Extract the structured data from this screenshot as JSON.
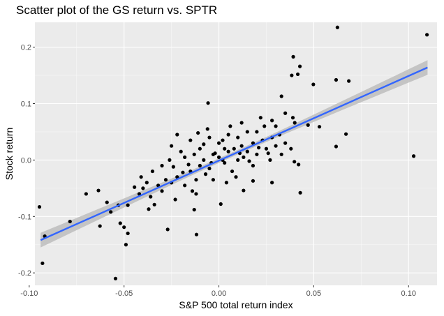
{
  "chart_data": {
    "type": "scatter",
    "title": "Scatter plot of the GS return vs. SPTR",
    "xlabel": "S&P 500 total return index",
    "ylabel": "Stock return",
    "xlim": [
      -0.097,
      0.115
    ],
    "ylim": [
      -0.222,
      0.244
    ],
    "x_ticks": [
      -0.1,
      -0.05,
      0.0,
      0.05,
      0.1
    ],
    "x_tick_labels": [
      "-0.10",
      "-0.05",
      "0.00",
      "0.05",
      "0.10"
    ],
    "y_ticks": [
      -0.2,
      -0.1,
      0.0,
      0.1,
      0.2
    ],
    "y_tick_labels": [
      "-0.2",
      "-0.1",
      "0.0",
      "0.1",
      "0.2"
    ],
    "grid": true,
    "legend": "none",
    "colors": {
      "panel": "#EBEBEB",
      "grid_major": "#FFFFFF",
      "points": "#000000",
      "fit_line": "#3366FF",
      "confidence_band": "#BDBDBD"
    },
    "fit": {
      "method": "lm",
      "x": [
        -0.094,
        0.11
      ],
      "y": [
        -0.142,
        0.164
      ],
      "band_halfwidth": {
        "ends": 0.013,
        "center": 0.004
      }
    },
    "points": [
      {
        "x": 0.0625,
        "y": 0.235
      },
      {
        "x": 0.1097,
        "y": 0.222
      },
      {
        "x": 0.0392,
        "y": 0.183
      },
      {
        "x": 0.0427,
        "y": 0.166
      },
      {
        "x": 0.0384,
        "y": 0.15
      },
      {
        "x": 0.0416,
        "y": 0.152
      },
      {
        "x": 0.0618,
        "y": 0.142
      },
      {
        "x": 0.0685,
        "y": 0.14
      },
      {
        "x": 0.0498,
        "y": 0.134
      },
      {
        "x": 0.033,
        "y": 0.113
      },
      {
        "x": -0.0057,
        "y": 0.101
      },
      {
        "x": 0.035,
        "y": 0.083
      },
      {
        "x": 0.022,
        "y": 0.075
      },
      {
        "x": 0.039,
        "y": 0.075
      },
      {
        "x": 0.028,
        "y": 0.07
      },
      {
        "x": 0.012,
        "y": 0.066
      },
      {
        "x": 0.04,
        "y": 0.066
      },
      {
        "x": 0.047,
        "y": 0.062
      },
      {
        "x": 0.053,
        "y": 0.059
      },
      {
        "x": 0.067,
        "y": 0.046
      },
      {
        "x": 0.0618,
        "y": 0.024
      },
      {
        "x": 0.1027,
        "y": 0.007
      },
      {
        "x": 0.0398,
        "y": -0.003
      },
      {
        "x": 0.042,
        "y": -0.008
      },
      {
        "x": 0.0429,
        "y": -0.058
      },
      {
        "x": 0.028,
        "y": -0.04
      },
      {
        "x": 0.018,
        "y": -0.037
      },
      {
        "x": 0.013,
        "y": -0.054
      },
      {
        "x": 0.001,
        "y": -0.078
      },
      {
        "x": -0.012,
        "y": -0.06
      },
      {
        "x": -0.013,
        "y": -0.088
      },
      {
        "x": -0.023,
        "y": -0.07
      },
      {
        "x": -0.027,
        "y": -0.123
      },
      {
        "x": -0.0118,
        "y": -0.132
      },
      {
        "x": -0.034,
        "y": -0.079
      },
      {
        "x": -0.037,
        "y": -0.087
      },
      {
        "x": -0.048,
        "y": -0.08
      },
      {
        "x": -0.05,
        "y": -0.119
      },
      {
        "x": -0.052,
        "y": -0.112
      },
      {
        "x": -0.048,
        "y": -0.13
      },
      {
        "x": -0.049,
        "y": -0.15
      },
      {
        "x": -0.0627,
        "y": -0.117
      },
      {
        "x": -0.0545,
        "y": -0.21
      },
      {
        "x": -0.093,
        "y": -0.183
      },
      {
        "x": -0.0946,
        "y": -0.083
      },
      {
        "x": -0.0918,
        "y": -0.135
      },
      {
        "x": -0.0785,
        "y": -0.109
      },
      {
        "x": -0.07,
        "y": -0.06
      },
      {
        "x": -0.0635,
        "y": -0.054
      },
      {
        "x": -0.059,
        "y": -0.075
      },
      {
        "x": -0.057,
        "y": -0.092
      },
      {
        "x": -0.053,
        "y": -0.08
      },
      {
        "x": -0.0445,
        "y": -0.048
      },
      {
        "x": -0.041,
        "y": -0.03
      },
      {
        "x": -0.042,
        "y": -0.06
      },
      {
        "x": -0.036,
        "y": -0.065
      },
      {
        "x": -0.03,
        "y": -0.055
      },
      {
        "x": -0.025,
        "y": -0.04
      },
      {
        "x": -0.022,
        "y": -0.03
      },
      {
        "x": -0.018,
        "y": -0.045
      },
      {
        "x": -0.015,
        "y": -0.02
      },
      {
        "x": -0.012,
        "y": -0.035
      },
      {
        "x": -0.01,
        "y": -0.01
      },
      {
        "x": -0.008,
        "y": 0.0
      },
      {
        "x": -0.005,
        "y": -0.015
      },
      {
        "x": -0.003,
        "y": 0.01
      },
      {
        "x": 0.0,
        "y": 0.005
      },
      {
        "x": 0.003,
        "y": -0.005
      },
      {
        "x": 0.005,
        "y": 0.015
      },
      {
        "x": 0.008,
        "y": 0.02
      },
      {
        "x": 0.01,
        "y": 0.0
      },
      {
        "x": 0.012,
        "y": 0.025
      },
      {
        "x": 0.015,
        "y": 0.015
      },
      {
        "x": 0.018,
        "y": 0.03
      },
      {
        "x": 0.02,
        "y": 0.01
      },
      {
        "x": 0.023,
        "y": 0.035
      },
      {
        "x": 0.025,
        "y": 0.02
      },
      {
        "x": 0.028,
        "y": 0.04
      },
      {
        "x": 0.03,
        "y": 0.025
      },
      {
        "x": 0.032,
        "y": 0.045
      },
      {
        "x": 0.035,
        "y": 0.03
      },
      {
        "x": 0.015,
        "y": 0.05
      },
      {
        "x": 0.005,
        "y": 0.045
      },
      {
        "x": -0.005,
        "y": 0.04
      },
      {
        "x": -0.015,
        "y": 0.035
      },
      {
        "x": -0.025,
        "y": 0.025
      },
      {
        "x": -0.02,
        "y": 0.015
      },
      {
        "x": -0.03,
        "y": -0.01
      },
      {
        "x": -0.035,
        "y": -0.02
      },
      {
        "x": -0.01,
        "y": 0.02
      },
      {
        "x": 0.0,
        "y": 0.03
      },
      {
        "x": 0.01,
        "y": 0.04
      },
      {
        "x": 0.02,
        "y": 0.05
      },
      {
        "x": -0.018,
        "y": 0.005
      },
      {
        "x": -0.007,
        "y": -0.025
      },
      {
        "x": 0.007,
        "y": -0.02
      },
      {
        "x": 0.018,
        "y": -0.01
      },
      {
        "x": 0.027,
        "y": 0.0
      },
      {
        "x": -0.028,
        "y": -0.035
      },
      {
        "x": -0.032,
        "y": -0.045
      },
      {
        "x": -0.006,
        "y": 0.055
      },
      {
        "x": 0.006,
        "y": 0.06
      },
      {
        "x": -0.022,
        "y": 0.045
      },
      {
        "x": 0.024,
        "y": 0.06
      },
      {
        "x": -0.026,
        "y": 0.0
      },
      {
        "x": 0.013,
        "y": 0.005
      },
      {
        "x": 0.003,
        "y": 0.02
      },
      {
        "x": -0.003,
        "y": -0.035
      },
      {
        "x": 0.004,
        "y": -0.04
      },
      {
        "x": -0.014,
        "y": -0.055
      },
      {
        "x": 0.009,
        "y": -0.03
      },
      {
        "x": 0.038,
        "y": 0.02
      },
      {
        "x": 0.03,
        "y": 0.06
      },
      {
        "x": -0.04,
        "y": -0.05
      },
      {
        "x": -0.038,
        "y": -0.04
      },
      {
        "x": 0.021,
        "y": 0.022
      },
      {
        "x": -0.008,
        "y": 0.028
      },
      {
        "x": -0.002,
        "y": 0.012
      },
      {
        "x": 0.011,
        "y": 0.012
      },
      {
        "x": -0.013,
        "y": 0.01
      },
      {
        "x": -0.019,
        "y": -0.022
      },
      {
        "x": 0.016,
        "y": -0.002
      },
      {
        "x": -0.004,
        "y": -0.005
      },
      {
        "x": 0.002,
        "y": 0.0
      },
      {
        "x": 0.002,
        "y": 0.035
      },
      {
        "x": -0.011,
        "y": 0.048
      },
      {
        "x": 0.026,
        "y": 0.012
      },
      {
        "x": 0.033,
        "y": 0.01
      },
      {
        "x": -0.024,
        "y": -0.012
      },
      {
        "x": -0.016,
        "y": -0.008
      }
    ]
  }
}
